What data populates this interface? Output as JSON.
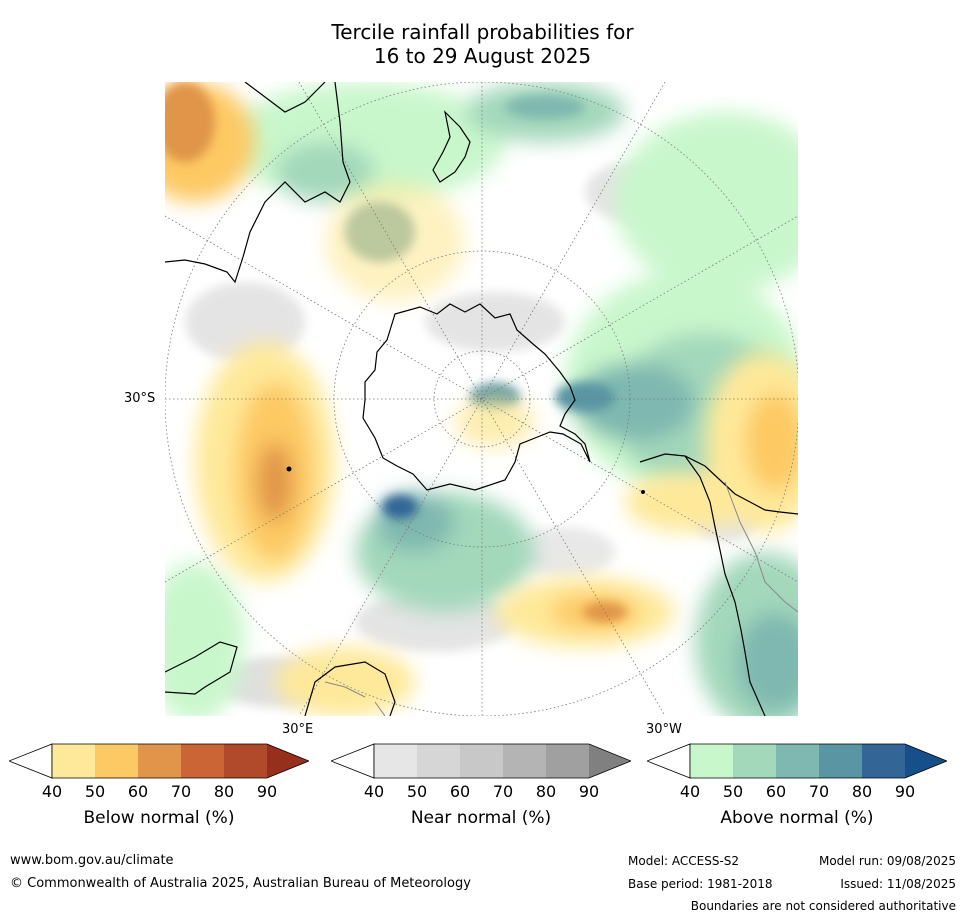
{
  "title": {
    "line1": "Tercile rainfall probabilities for",
    "line2": "16 to 29 August 2025"
  },
  "map": {
    "projection": "south-polar-stereographic",
    "lat_label": "30°S",
    "lon_labels": [
      "30°E",
      "30°W"
    ]
  },
  "colorbars": [
    {
      "label": "Below normal (%)",
      "ticks": [
        "40",
        "50",
        "60",
        "70",
        "80",
        "90"
      ],
      "colors": [
        "#ffffff",
        "#fee99a",
        "#fdc964",
        "#e0954a",
        "#cb6535",
        "#b04a2a",
        "#962f1c"
      ]
    },
    {
      "label": "Near normal (%)",
      "ticks": [
        "40",
        "50",
        "60",
        "70",
        "80",
        "90"
      ],
      "colors": [
        "#ffffff",
        "#e6e6e6",
        "#d6d6d6",
        "#c8c8c8",
        "#b4b4b4",
        "#a0a0a0",
        "#808080"
      ]
    },
    {
      "label": "Above normal (%)",
      "ticks": [
        "40",
        "50",
        "60",
        "70",
        "80",
        "90"
      ],
      "colors": [
        "#ffffff",
        "#c9f7cc",
        "#a3d8bb",
        "#7fb8b0",
        "#5a95a3",
        "#336697",
        "#16508a"
      ]
    }
  ],
  "footer": {
    "website": "www.bom.gov.au/climate",
    "copyright": "© Commonwealth of Australia 2025, Australian Bureau of Meteorology",
    "model": "Model: ACCESS-S2",
    "model_run": "Model run: 09/08/2025",
    "base_period": "Base period: 1981-2018",
    "issued": "Issued: 11/08/2025",
    "disclaimer": "Boundaries are not considered authoritative"
  }
}
